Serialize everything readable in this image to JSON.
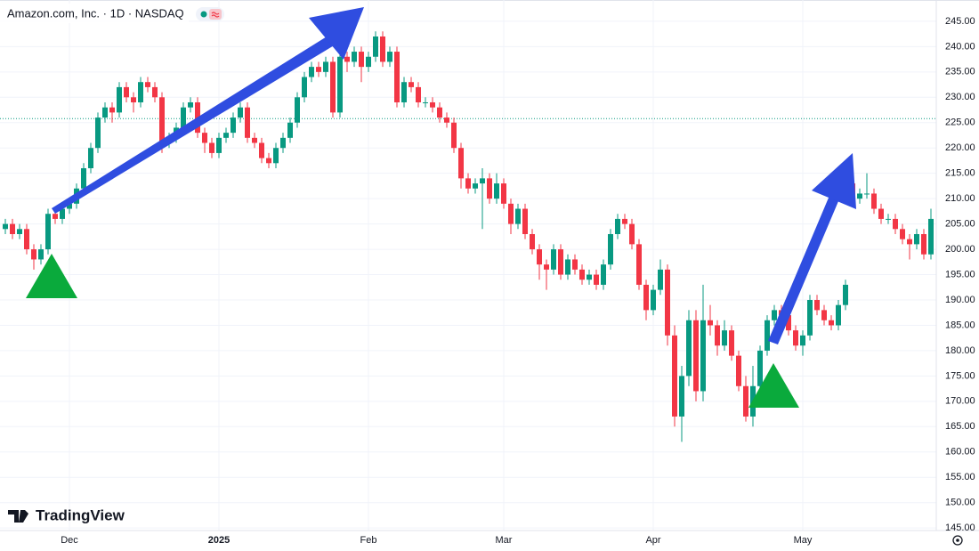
{
  "chart_data": {
    "type": "candlestick",
    "title": "Amazon.com, Inc. · 1D · NASDAQ",
    "watermark": "TradingView",
    "up_color": "#089981",
    "down_color": "#f23645",
    "grid": true,
    "reference_line": 225.8,
    "ylim": [
      144.5,
      249.2
    ],
    "yticks": [
      {
        "value": 145,
        "label": "145.00"
      },
      {
        "value": 150,
        "label": "150.00"
      },
      {
        "value": 155,
        "label": "155.00"
      },
      {
        "value": 160,
        "label": "160.00"
      },
      {
        "value": 165,
        "label": "165.00"
      },
      {
        "value": 170,
        "label": "170.00"
      },
      {
        "value": 175,
        "label": "175.00"
      },
      {
        "value": 180,
        "label": "180.00"
      },
      {
        "value": 185,
        "label": "185.00"
      },
      {
        "value": 190,
        "label": "190.00"
      },
      {
        "value": 195,
        "label": "195.00"
      },
      {
        "value": 200,
        "label": "200.00"
      },
      {
        "value": 205,
        "label": "205.00"
      },
      {
        "value": 210,
        "label": "210.00"
      },
      {
        "value": 215,
        "label": "215.00"
      },
      {
        "value": 220,
        "label": "220.00"
      },
      {
        "value": 225,
        "label": "225.00"
      },
      {
        "value": 230,
        "label": "230.00"
      },
      {
        "value": 235,
        "label": "235.00"
      },
      {
        "value": 240,
        "label": "240.00"
      },
      {
        "value": 245,
        "label": "245.00"
      }
    ],
    "categories": [
      null,
      null,
      null,
      null,
      null,
      null,
      null,
      null,
      null,
      "Dec",
      null,
      null,
      null,
      null,
      null,
      null,
      null,
      null,
      null,
      null,
      null,
      null,
      null,
      null,
      null,
      null,
      null,
      null,
      null,
      null,
      "2025",
      null,
      null,
      null,
      null,
      null,
      null,
      null,
      null,
      null,
      null,
      null,
      null,
      null,
      null,
      null,
      null,
      null,
      null,
      null,
      null,
      "Feb",
      null,
      null,
      null,
      null,
      null,
      null,
      null,
      null,
      null,
      null,
      null,
      null,
      null,
      null,
      null,
      null,
      null,
      null,
      "Mar",
      null,
      null,
      null,
      null,
      null,
      null,
      null,
      null,
      null,
      null,
      null,
      null,
      null,
      null,
      null,
      null,
      null,
      null,
      null,
      null,
      "Apr",
      null,
      null,
      null,
      null,
      null,
      null,
      null,
      null,
      null,
      null,
      null,
      null,
      null,
      null,
      null,
      null,
      null,
      null,
      null,
      null,
      "May",
      null,
      null,
      null,
      null,
      null,
      null,
      null,
      null,
      null,
      null,
      null,
      null,
      null,
      null,
      null,
      null,
      null,
      null
    ],
    "open": [
      204,
      205,
      203,
      204,
      200,
      198,
      200,
      207,
      206,
      208,
      209,
      212,
      216,
      220,
      226,
      228,
      227,
      232,
      230,
      229,
      233,
      232,
      230,
      221,
      222,
      224,
      228,
      229,
      223,
      221,
      219,
      222,
      223,
      226,
      228,
      222,
      221,
      218,
      217,
      220,
      222,
      225,
      230,
      234,
      236,
      235,
      237,
      227,
      238,
      237,
      239,
      236,
      238,
      242,
      237,
      239,
      229,
      233,
      232,
      229,
      229,
      228,
      226,
      225,
      220,
      214,
      212,
      213,
      214,
      210,
      213,
      209,
      205,
      208,
      203,
      200,
      197,
      196,
      200,
      195,
      198,
      196,
      194,
      195,
      193,
      197,
      203,
      206,
      205,
      201,
      193,
      188,
      192,
      196,
      183,
      167,
      175,
      186,
      172,
      186,
      185,
      181,
      184,
      179,
      173,
      167,
      173,
      180,
      186,
      188,
      187,
      184,
      181,
      183,
      190,
      188,
      186,
      185,
      189,
      213,
      210,
      211,
      211,
      208,
      206,
      206,
      204,
      202,
      201,
      203,
      199
    ],
    "high": [
      206,
      206,
      205,
      205,
      201,
      201,
      208,
      208,
      209,
      210,
      213,
      217,
      221,
      227,
      229,
      229,
      233,
      233,
      231,
      234,
      234,
      233,
      231,
      223,
      225,
      229,
      230,
      230,
      224,
      222,
      223,
      224,
      227,
      229,
      229,
      223,
      222,
      219,
      221,
      223,
      226,
      231,
      235,
      237,
      237,
      238,
      238,
      240,
      239,
      240,
      240,
      239,
      243,
      243,
      240,
      240,
      234,
      234,
      233,
      230,
      230,
      229,
      227,
      226,
      221,
      215,
      214,
      216,
      215,
      215,
      214,
      210,
      209,
      209,
      204,
      201,
      198,
      201,
      201,
      199,
      199,
      197,
      196,
      196,
      198,
      204,
      207,
      207,
      206,
      202,
      194,
      193,
      198,
      197,
      185,
      177,
      188,
      188,
      193,
      189,
      186,
      186,
      185,
      180,
      175,
      177,
      181,
      187,
      189,
      189,
      188,
      185,
      184,
      191,
      191,
      189,
      187,
      190,
      194,
      214,
      212,
      215,
      212,
      209,
      207,
      207,
      205,
      203,
      204,
      204,
      208
    ],
    "low": [
      203,
      202,
      202,
      199,
      196,
      197,
      199,
      205,
      205,
      207,
      208,
      211,
      215,
      219,
      225,
      225,
      226,
      229,
      227,
      228,
      231,
      229,
      219,
      220,
      221,
      223,
      227,
      222,
      219,
      218,
      218,
      221,
      222,
      225,
      221,
      220,
      217,
      216,
      216,
      219,
      221,
      224,
      229,
      233,
      234,
      234,
      226,
      226,
      235,
      236,
      233,
      235,
      237,
      236,
      236,
      228,
      228,
      231,
      228,
      228,
      227,
      225,
      224,
      219,
      212,
      211,
      211,
      204,
      209,
      209,
      208,
      203,
      204,
      202,
      199,
      194,
      192,
      195,
      194,
      194,
      195,
      193,
      193,
      192,
      192,
      196,
      202,
      204,
      200,
      192,
      186,
      187,
      191,
      181,
      165,
      162,
      173,
      170,
      170,
      183,
      179,
      180,
      178,
      172,
      166,
      165,
      172,
      179,
      185,
      186,
      183,
      180,
      179,
      182,
      187,
      185,
      184,
      184,
      188,
      209,
      209,
      210,
      207,
      205,
      205,
      203,
      201,
      198,
      200,
      198,
      198
    ],
    "close": [
      205,
      203,
      204,
      200,
      198,
      200,
      207,
      206,
      208,
      209,
      212,
      216,
      220,
      226,
      228,
      227,
      232,
      230,
      229,
      233,
      232,
      230,
      221,
      222,
      224,
      228,
      229,
      223,
      221,
      219,
      222,
      223,
      226,
      228,
      222,
      221,
      218,
      217,
      220,
      222,
      225,
      230,
      234,
      236,
      235,
      237,
      227,
      238,
      237,
      239,
      236,
      238,
      242,
      237,
      239,
      229,
      233,
      232,
      229,
      229,
      228,
      226,
      225,
      220,
      214,
      212,
      213,
      214,
      210,
      213,
      209,
      205,
      208,
      203,
      200,
      197,
      196,
      200,
      195,
      198,
      196,
      194,
      195,
      193,
      197,
      203,
      206,
      205,
      201,
      193,
      188,
      192,
      196,
      183,
      167,
      175,
      186,
      172,
      186,
      185,
      181,
      184,
      179,
      173,
      167,
      173,
      180,
      186,
      188,
      187,
      184,
      181,
      183,
      190,
      188,
      186,
      185,
      189,
      193,
      210,
      211,
      211,
      208,
      206,
      206,
      204,
      202,
      201,
      203,
      199,
      206
    ]
  }
}
